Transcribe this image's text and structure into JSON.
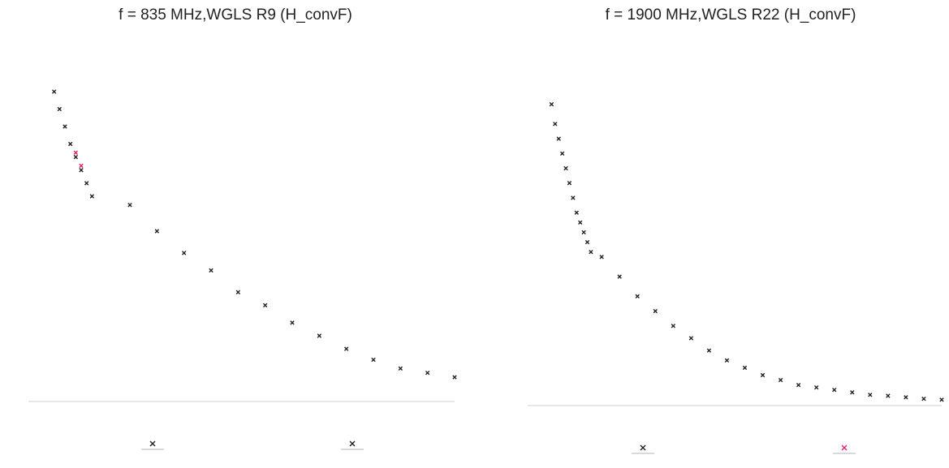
{
  "chart_data": [
    {
      "type": "scatter",
      "title": "f = 835 MHz,WGLS R9 (H_convF)",
      "xlabel": "",
      "ylabel": "",
      "series": [
        {
          "color": "#222222",
          "marker": "x",
          "points": [
            [
              0.2,
              0.72
            ],
            [
              0.4,
              0.68
            ],
            [
              0.6,
              0.64
            ],
            [
              0.8,
              0.6
            ],
            [
              1.0,
              0.57
            ],
            [
              1.2,
              0.54
            ],
            [
              1.4,
              0.51
            ],
            [
              1.6,
              0.48
            ],
            [
              3.0,
              0.46
            ],
            [
              4.0,
              0.4
            ],
            [
              5.0,
              0.35
            ],
            [
              6.0,
              0.31
            ],
            [
              7.0,
              0.26
            ],
            [
              8.0,
              0.23
            ],
            [
              9.0,
              0.19
            ],
            [
              10.0,
              0.16
            ],
            [
              11.0,
              0.13
            ],
            [
              12.0,
              0.105
            ],
            [
              13.0,
              0.085
            ],
            [
              14.0,
              0.075
            ],
            [
              15.0,
              0.065
            ]
          ]
        },
        {
          "color": "#e8206e",
          "marker": "x",
          "points": [
            [
              1.0,
              0.58
            ],
            [
              1.2,
              0.55
            ]
          ]
        }
      ],
      "xlim": [
        0,
        15
      ],
      "ylim": [
        0,
        0.8
      ],
      "legend_symbols": [
        {
          "color": "#222222"
        },
        {
          "color": "#222222"
        }
      ]
    },
    {
      "type": "scatter",
      "title": "f = 1900 MHz,WGLS R22 (H_convF)",
      "xlabel": "",
      "ylabel": "",
      "series": [
        {
          "color": "#222222",
          "marker": "x",
          "points": [
            [
              0.2,
              0.62
            ],
            [
              0.4,
              0.58
            ],
            [
              0.6,
              0.55
            ],
            [
              0.8,
              0.52
            ],
            [
              1.0,
              0.49
            ],
            [
              1.2,
              0.46
            ],
            [
              1.4,
              0.43
            ],
            [
              1.6,
              0.4
            ],
            [
              1.8,
              0.38
            ],
            [
              2.0,
              0.36
            ],
            [
              2.2,
              0.34
            ],
            [
              2.4,
              0.32
            ],
            [
              3.0,
              0.31
            ],
            [
              4.0,
              0.27
            ],
            [
              5.0,
              0.23
            ],
            [
              6.0,
              0.2
            ],
            [
              7.0,
              0.17
            ],
            [
              8.0,
              0.145
            ],
            [
              9.0,
              0.12
            ],
            [
              10.0,
              0.1
            ],
            [
              11.0,
              0.085
            ],
            [
              12.0,
              0.07
            ],
            [
              13.0,
              0.06
            ],
            [
              14.0,
              0.05
            ],
            [
              15.0,
              0.045
            ],
            [
              16.0,
              0.04
            ],
            [
              17.0,
              0.035
            ],
            [
              18.0,
              0.03
            ],
            [
              19.0,
              0.028
            ],
            [
              20.0,
              0.025
            ],
            [
              21.0,
              0.022
            ],
            [
              22.0,
              0.02
            ]
          ]
        }
      ],
      "xlim": [
        0,
        22
      ],
      "ylim": [
        0,
        0.7
      ],
      "legend_symbols": [
        {
          "color": "#222222"
        },
        {
          "color": "#e8206e"
        }
      ]
    }
  ]
}
